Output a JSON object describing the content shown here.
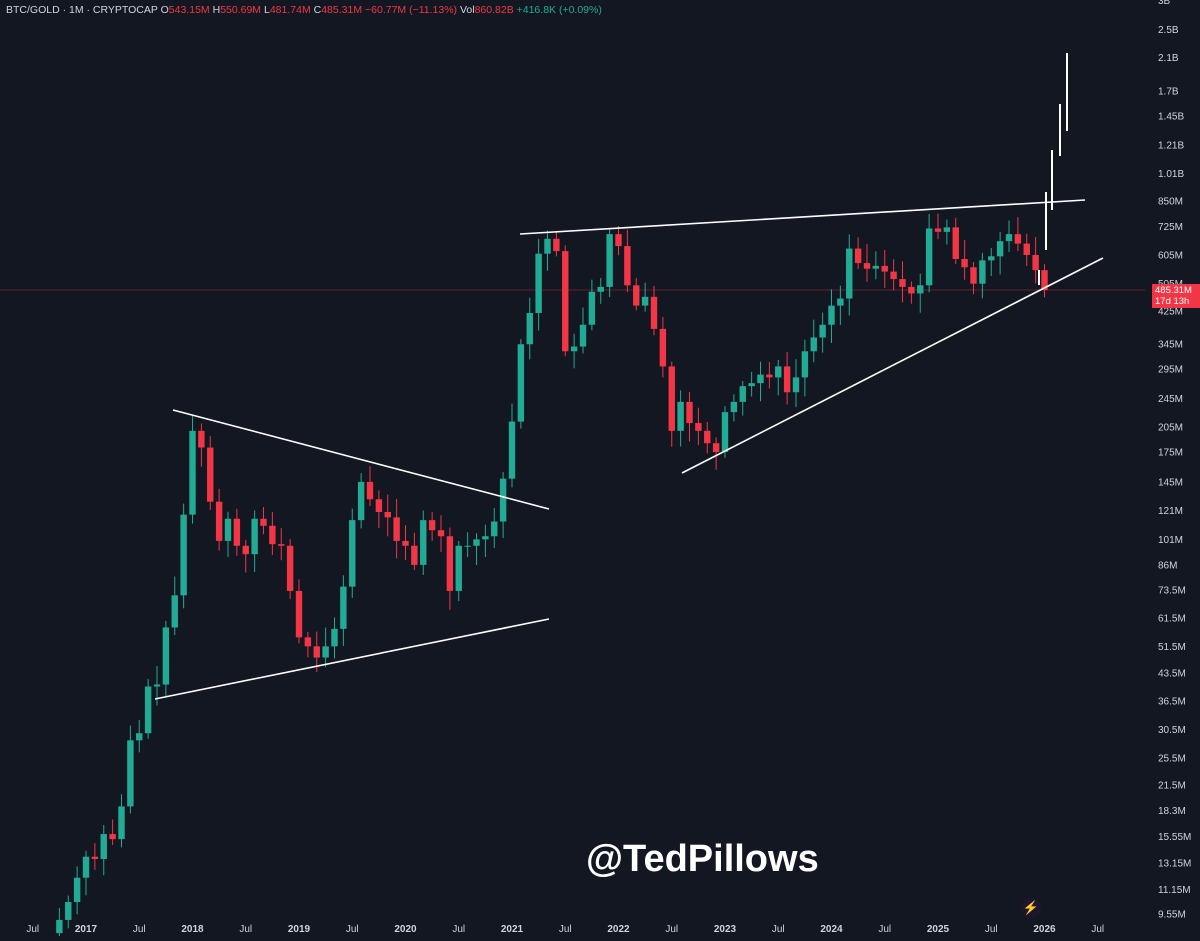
{
  "header": {
    "symbol": "BTC/GOLD · 1M · CRYPTOCAP",
    "o_label": "O",
    "o_value": "543.15M",
    "h_label": "H",
    "h_value": "550.69M",
    "l_label": "L",
    "l_value": "481.74M",
    "c_label": "C",
    "c_value": "485.31M",
    "change": "−60.77M (−11.13%)",
    "vol_label": "Vol",
    "vol_value": "860.82B",
    "vol_change": "+416.8K (+0.09%)"
  },
  "price_tag": {
    "price": "485.31M",
    "countdown": "17d 13h"
  },
  "watermark": "@TedPillows",
  "bolt_icon": "lightning-bolt-icon",
  "colors": {
    "background": "#131722",
    "up": "#22ab94",
    "down": "#f23645",
    "text": "#d1d4dc",
    "lines": "#ffffff"
  },
  "chart_data": {
    "type": "candlestick",
    "scale": "log",
    "interval": "1M",
    "y_ticks": [
      "3B",
      "2.5B",
      "2.1B",
      "1.7B",
      "1.45B",
      "1.21B",
      "1.01B",
      "850M",
      "725M",
      "605M",
      "505M",
      "425M",
      "345M",
      "295M",
      "245M",
      "205M",
      "175M",
      "145M",
      "121M",
      "101M",
      "86M",
      "73.5M",
      "61.5M",
      "51.5M",
      "43.5M",
      "36.5M",
      "30.5M",
      "25.5M",
      "21.5M",
      "18.3M",
      "15.55M",
      "13.15M",
      "11.15M",
      "9.55M"
    ],
    "x_ticks": [
      {
        "label": "Jul",
        "t": 2016.5,
        "year": false
      },
      {
        "label": "2017",
        "t": 2017.0,
        "year": true
      },
      {
        "label": "Jul",
        "t": 2017.5,
        "year": false
      },
      {
        "label": "2018",
        "t": 2018.0,
        "year": true
      },
      {
        "label": "Jul",
        "t": 2018.5,
        "year": false
      },
      {
        "label": "2019",
        "t": 2019.0,
        "year": true
      },
      {
        "label": "Jul",
        "t": 2019.5,
        "year": false
      },
      {
        "label": "2020",
        "t": 2020.0,
        "year": true
      },
      {
        "label": "Jul",
        "t": 2020.5,
        "year": false
      },
      {
        "label": "2021",
        "t": 2021.0,
        "year": true
      },
      {
        "label": "Jul",
        "t": 2021.5,
        "year": false
      },
      {
        "label": "2022",
        "t": 2022.0,
        "year": true
      },
      {
        "label": "Jul",
        "t": 2022.5,
        "year": false
      },
      {
        "label": "2023",
        "t": 2023.0,
        "year": true
      },
      {
        "label": "Jul",
        "t": 2023.5,
        "year": false
      },
      {
        "label": "2024",
        "t": 2024.0,
        "year": true
      },
      {
        "label": "Jul",
        "t": 2024.5,
        "year": false
      },
      {
        "label": "2025",
        "t": 2025.0,
        "year": true
      },
      {
        "label": "Jul",
        "t": 2025.5,
        "year": false
      },
      {
        "label": "2026",
        "t": 2026.0,
        "year": true
      },
      {
        "label": "Jul",
        "t": 2026.5,
        "year": false
      }
    ],
    "last_price_M": 485.31,
    "closes_M": [
      9.2,
      10.3,
      12.0,
      13.7,
      13.5,
      15.8,
      15.3,
      18.8,
      28.5,
      29.8,
      40.0,
      40.5,
      58.0,
      71.0,
      118.0,
      200.0,
      180.0,
      128.0,
      100.0,
      115.0,
      97.0,
      92.0,
      115.0,
      110.0,
      98.0,
      97.0,
      73.0,
      54.5,
      51.5,
      48.0,
      51.5,
      57.5,
      75.0,
      114.0,
      145.0,
      130.0,
      120.0,
      116.0,
      100.0,
      97.0,
      86.0,
      114.0,
      107.0,
      103.0,
      73.0,
      97.0,
      97.0,
      101.0,
      103.0,
      113.0,
      148.0,
      212.0,
      345.0,
      420.0,
      610.0,
      670.0,
      620.0,
      330.0,
      340.0,
      390.0,
      480.0,
      495.0,
      690.0,
      640.0,
      500.0,
      440.0,
      465.0,
      380.0,
      300.0,
      200.0,
      240.0,
      210.0,
      200.0,
      185.0,
      175.0,
      225.0,
      240.0,
      265.0,
      270.0,
      285.0,
      280.0,
      300.0,
      255.0,
      280.0,
      330.0,
      360.0,
      390.0,
      440.0,
      460.0,
      630.0,
      575.0,
      555.0,
      565.0,
      545.0,
      520.0,
      495.0,
      475.0,
      500.0,
      715.0,
      700.0,
      720.0,
      590.0,
      560.0,
      505.0,
      585.0,
      600.0,
      660.0,
      690.0,
      650.0,
      605.0,
      550.0,
      485.31
    ]
  }
}
